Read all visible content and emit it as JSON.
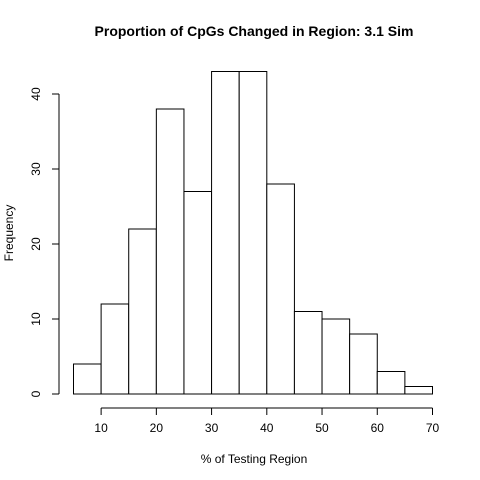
{
  "chart_data": {
    "type": "bar",
    "subtype": "histogram",
    "title": "Proportion of CpGs Changed in Region: 3.1 Sim",
    "xlabel": "% of Testing Region",
    "ylabel": "Frequency",
    "bins": [
      {
        "start": 5,
        "end": 10,
        "count": 4
      },
      {
        "start": 10,
        "end": 15,
        "count": 12
      },
      {
        "start": 15,
        "end": 20,
        "count": 22
      },
      {
        "start": 20,
        "end": 25,
        "count": 38
      },
      {
        "start": 25,
        "end": 30,
        "count": 27
      },
      {
        "start": 30,
        "end": 35,
        "count": 43
      },
      {
        "start": 35,
        "end": 40,
        "count": 43
      },
      {
        "start": 40,
        "end": 45,
        "count": 28
      },
      {
        "start": 45,
        "end": 50,
        "count": 11
      },
      {
        "start": 50,
        "end": 55,
        "count": 10
      },
      {
        "start": 55,
        "end": 60,
        "count": 8
      },
      {
        "start": 60,
        "end": 65,
        "count": 3
      },
      {
        "start": 65,
        "end": 70,
        "count": 1
      }
    ],
    "xticks": [
      10,
      20,
      30,
      40,
      50,
      60,
      70
    ],
    "yticks": [
      0,
      10,
      20,
      30,
      40
    ],
    "xlim": [
      5,
      70
    ],
    "ylim": [
      0,
      43
    ],
    "grid": false,
    "colors": {
      "bar_fill": "#ffffff",
      "bar_stroke": "#000000",
      "axis": "#000000"
    }
  }
}
